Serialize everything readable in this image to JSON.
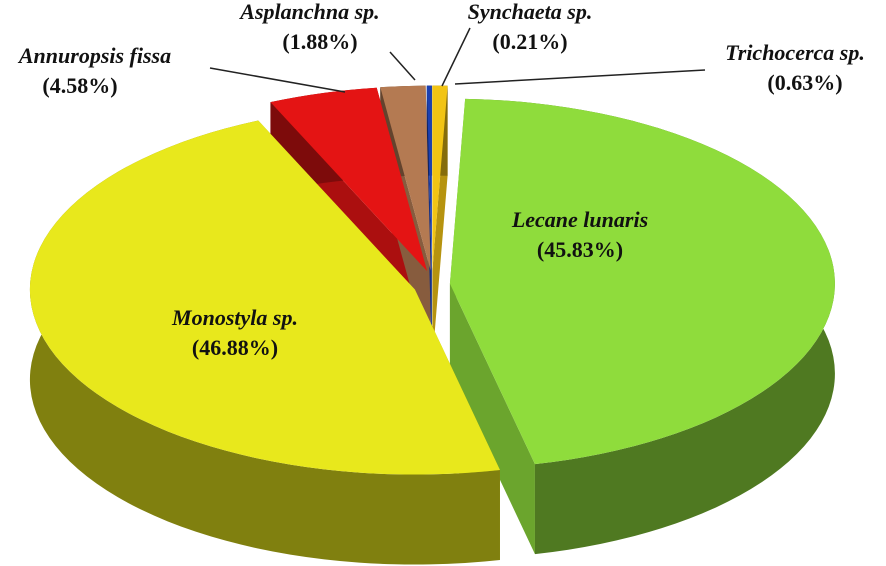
{
  "chart_data": {
    "type": "pie",
    "categories": [
      "Trichocerca sp.",
      "Lecane lunaris",
      "Monostyla sp.",
      "Annuropsis fissa",
      "Asplanchna sp.",
      "Synchaeta sp."
    ],
    "values": [
      0.63,
      45.83,
      46.88,
      4.58,
      1.88,
      0.21
    ],
    "value_labels": [
      "(0.63%)",
      "(45.83%)",
      "(46.88%)",
      "(4.58%)",
      "(1.88%)",
      "(0.21%)"
    ],
    "colors": [
      "#f2c414",
      "#8fdc3c",
      "#e8e81c",
      "#e41414",
      "#b47a52",
      "#1c40b0"
    ]
  }
}
